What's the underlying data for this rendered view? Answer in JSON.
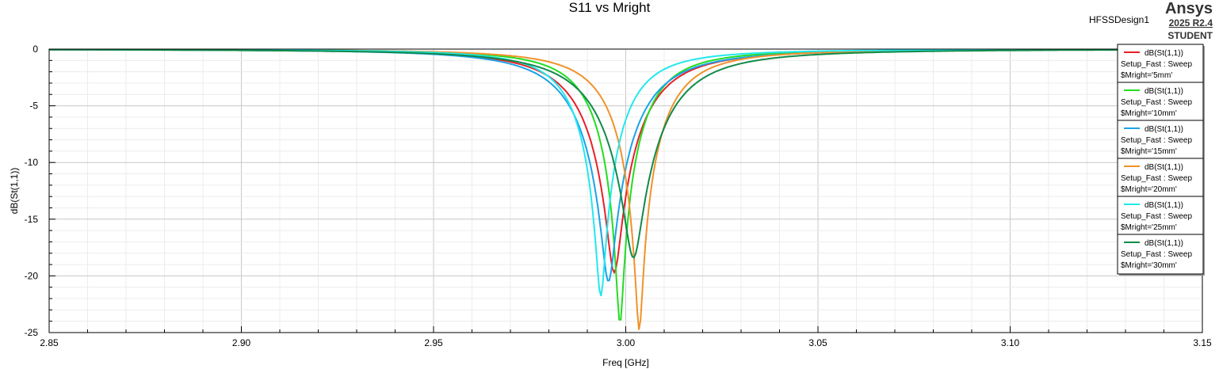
{
  "header": {
    "design_name": "HFSSDesign1",
    "brand_name": "Ansys",
    "brand_version": "2025 R2.4",
    "brand_edition": "STUDENT"
  },
  "chart_data": {
    "type": "line",
    "title": "S11 vs Mright",
    "xlabel": "Freq [GHz]",
    "ylabel": "dB(St(1,1))",
    "xlim": [
      2.85,
      3.15
    ],
    "ylim": [
      -25,
      0
    ],
    "xticks": [
      "2.85",
      "2.90",
      "2.95",
      "3.00",
      "3.05",
      "3.10",
      "3.15"
    ],
    "yticks": [
      "0",
      "-5",
      "-10",
      "-15",
      "-20",
      "-25"
    ],
    "grid": true,
    "legend_position": "top-right",
    "series": [
      {
        "name": "dB(St(1,1))",
        "setup": "Setup_Fast : Sweep",
        "param": "$Mright='5mm'",
        "color": "#e8202a",
        "f0": 2.997,
        "min": -19.7,
        "q": 0.0148
      },
      {
        "name": "dB(St(1,1))",
        "setup": "Setup_Fast : Sweep",
        "param": "$Mright='10mm'",
        "color": "#22dd22",
        "f0": 2.9985,
        "min": -24.2,
        "q": 0.0122
      },
      {
        "name": "dB(St(1,1))",
        "setup": "Setup_Fast : Sweep",
        "param": "$Mright='15mm'",
        "color": "#1aa3e8",
        "f0": 2.9955,
        "min": -20.5,
        "q": 0.0152
      },
      {
        "name": "dB(St(1,1))",
        "setup": "Setup_Fast : Sweep",
        "param": "$Mright='20mm'",
        "color": "#f0922a",
        "f0": 3.0035,
        "min": -24.8,
        "q": 0.0128
      },
      {
        "name": "dB(St(1,1))",
        "setup": "Setup_Fast : Sweep",
        "param": "$Mright='25mm'",
        "color": "#22e8ee",
        "f0": 2.9935,
        "min": -21.8,
        "q": 0.0118
      },
      {
        "name": "dB(St(1,1))",
        "setup": "Setup_Fast : Sweep",
        "param": "$Mright='30mm'",
        "color": "#118a4a",
        "f0": 3.002,
        "min": -18.4,
        "q": 0.0165
      }
    ]
  }
}
